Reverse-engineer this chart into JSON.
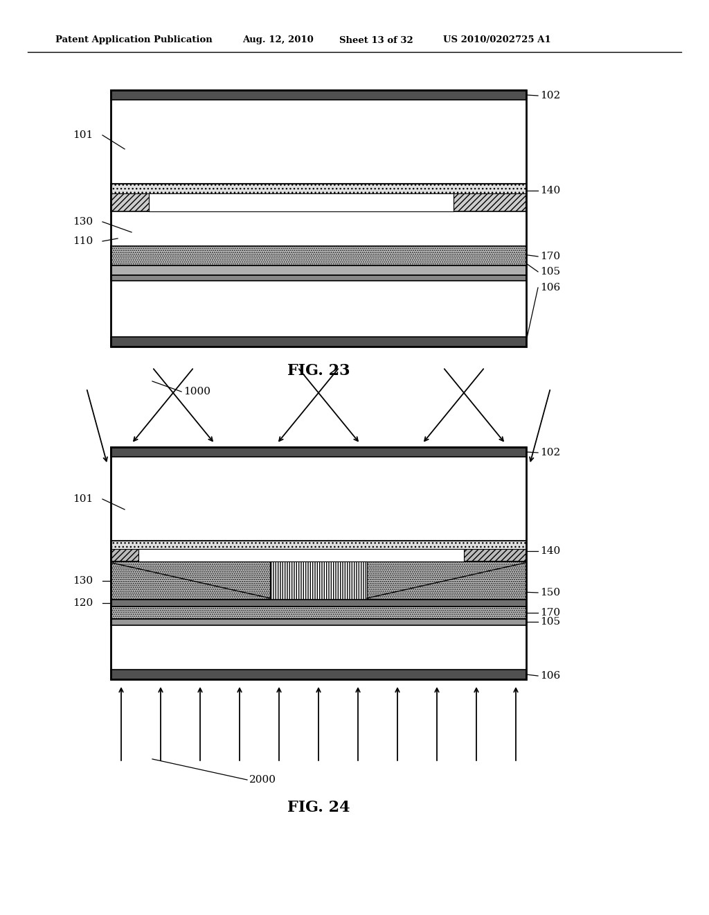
{
  "bg_color": "#ffffff",
  "header_text": "Patent Application Publication",
  "header_date": "Aug. 12, 2010",
  "header_sheet": "Sheet 13 of 32",
  "header_patent": "US 2010/0202725 A1",
  "fig23_caption": "FIG. 23",
  "fig24_caption": "FIG. 24"
}
